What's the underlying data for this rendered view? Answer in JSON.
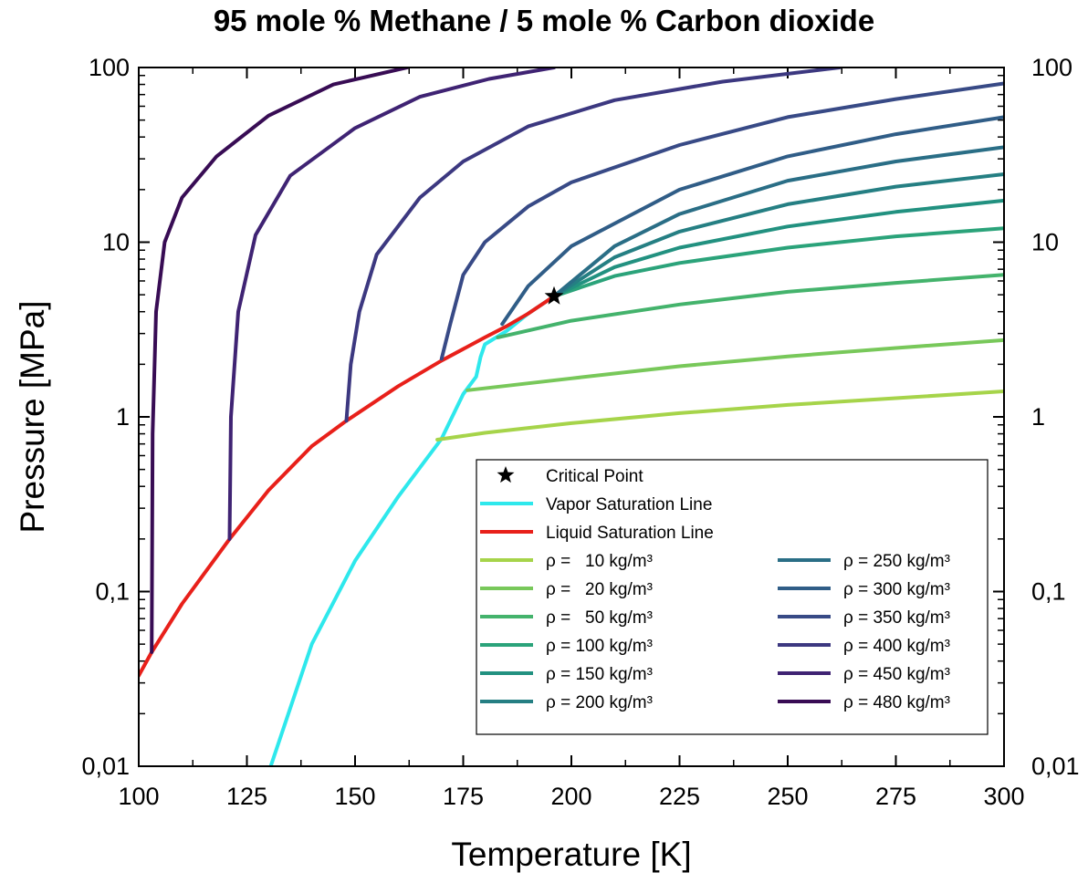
{
  "chart_data": {
    "type": "line",
    "title": "95 mole % Methane / 5 mole % Carbon dioxide",
    "xlabel": "Temperature [K]",
    "ylabel": "Pressure [MPa]",
    "xlim": [
      100,
      300
    ],
    "ylim": [
      0.01,
      100
    ],
    "y_scale": "log",
    "x_ticks": [
      100,
      125,
      150,
      175,
      200,
      225,
      250,
      275,
      300
    ],
    "y_ticks": [
      0.01,
      0.1,
      1,
      10,
      100
    ],
    "y_tick_labels": [
      "0,01",
      "0,1",
      "1",
      "10",
      "100"
    ],
    "right_axis_labels": true,
    "legend_position": "bottom-right",
    "critical_point": {
      "name": "Critical Point",
      "x": 196,
      "y": 4.9,
      "color": "#000000"
    },
    "series": [
      {
        "name": "Vapor Saturation Line",
        "color": "#2ee8ec",
        "points": [
          [
            130.5,
            0.01
          ],
          [
            140,
            0.05
          ],
          [
            150,
            0.15
          ],
          [
            160,
            0.35
          ],
          [
            170,
            0.75
          ],
          [
            175,
            1.35
          ],
          [
            178,
            1.7
          ],
          [
            179,
            2.2
          ],
          [
            180,
            2.6
          ],
          [
            185,
            3.1
          ],
          [
            190,
            3.9
          ],
          [
            196,
            4.9
          ]
        ]
      },
      {
        "name": "Liquid Saturation Line",
        "color": "#e8201a",
        "points": [
          [
            100,
            0.033
          ],
          [
            103,
            0.045
          ],
          [
            110,
            0.085
          ],
          [
            121,
            0.2
          ],
          [
            130,
            0.38
          ],
          [
            140,
            0.68
          ],
          [
            148,
            0.95
          ],
          [
            160,
            1.5
          ],
          [
            170,
            2.1
          ],
          [
            180,
            2.85
          ],
          [
            185,
            3.3
          ],
          [
            190,
            3.9
          ],
          [
            196,
            4.9
          ]
        ]
      },
      {
        "name": "ρ =   10 kg/m³",
        "color": "#a6d44a",
        "points": [
          [
            169,
            0.74
          ],
          [
            180,
            0.81
          ],
          [
            200,
            0.92
          ],
          [
            225,
            1.05
          ],
          [
            250,
            1.17
          ],
          [
            275,
            1.28
          ],
          [
            300,
            1.4
          ]
        ]
      },
      {
        "name": "ρ =   20 kg/m³",
        "color": "#78c85a",
        "points": [
          [
            176,
            1.42
          ],
          [
            200,
            1.66
          ],
          [
            225,
            1.95
          ],
          [
            250,
            2.22
          ],
          [
            275,
            2.48
          ],
          [
            300,
            2.75
          ]
        ]
      },
      {
        "name": "ρ =   50 kg/m³",
        "color": "#44b36c",
        "points": [
          [
            183,
            2.85
          ],
          [
            200,
            3.55
          ],
          [
            225,
            4.4
          ],
          [
            250,
            5.2
          ],
          [
            275,
            5.85
          ],
          [
            300,
            6.5
          ]
        ]
      },
      {
        "name": "ρ = 100 kg/m³",
        "color": "#2ba37a",
        "points": [
          [
            196,
            4.9
          ],
          [
            210,
            6.4
          ],
          [
            225,
            7.6
          ],
          [
            250,
            9.3
          ],
          [
            275,
            10.8
          ],
          [
            300,
            12
          ]
        ]
      },
      {
        "name": "ρ = 150 kg/m³",
        "color": "#229180",
        "points": [
          [
            196,
            4.9
          ],
          [
            210,
            7.2
          ],
          [
            225,
            9.3
          ],
          [
            250,
            12.3
          ],
          [
            275,
            14.9
          ],
          [
            300,
            17.3
          ]
        ]
      },
      {
        "name": "ρ = 200 kg/m³",
        "color": "#257f83",
        "points": [
          [
            196,
            4.9
          ],
          [
            210,
            8.2
          ],
          [
            225,
            11.5
          ],
          [
            250,
            16.5
          ],
          [
            275,
            20.8
          ],
          [
            300,
            24.5
          ]
        ]
      },
      {
        "name": "ρ = 250 kg/m³",
        "color": "#2a6e86",
        "points": [
          [
            196,
            4.9
          ],
          [
            210,
            9.5
          ],
          [
            225,
            14.5
          ],
          [
            250,
            22.5
          ],
          [
            275,
            29
          ],
          [
            300,
            35
          ]
        ]
      },
      {
        "name": "ρ = 300 kg/m³",
        "color": "#305d87",
        "points": [
          [
            184,
            3.4
          ],
          [
            190,
            5.6
          ],
          [
            200,
            9.5
          ],
          [
            225,
            20
          ],
          [
            250,
            31
          ],
          [
            275,
            41.5
          ],
          [
            300,
            52
          ]
        ]
      },
      {
        "name": "ρ = 350 kg/m³",
        "color": "#384a86",
        "points": [
          [
            170,
            2.15
          ],
          [
            172,
            3.4
          ],
          [
            175,
            6.5
          ],
          [
            180,
            10
          ],
          [
            190,
            16
          ],
          [
            200,
            22
          ],
          [
            225,
            36
          ],
          [
            250,
            52
          ],
          [
            275,
            66
          ],
          [
            300,
            81
          ]
        ]
      },
      {
        "name": "ρ = 400 kg/m³",
        "color": "#3c3880",
        "points": [
          [
            148,
            0.95
          ],
          [
            149,
            2
          ],
          [
            151,
            4
          ],
          [
            155,
            8.5
          ],
          [
            165,
            18
          ],
          [
            175,
            29
          ],
          [
            190,
            46
          ],
          [
            210,
            65
          ],
          [
            235,
            83
          ],
          [
            262,
            100
          ]
        ]
      },
      {
        "name": "ρ = 450 kg/m³",
        "color": "#3f2373",
        "points": [
          [
            121,
            0.2
          ],
          [
            121.3,
            1
          ],
          [
            123,
            4
          ],
          [
            127,
            11
          ],
          [
            135,
            24
          ],
          [
            150,
            45
          ],
          [
            165,
            68
          ],
          [
            181,
            86
          ],
          [
            196,
            100
          ]
        ]
      },
      {
        "name": "ρ = 480 kg/m³",
        "color": "#380c54",
        "points": [
          [
            103,
            0.045
          ],
          [
            103.2,
            0.8
          ],
          [
            104,
            4
          ],
          [
            106,
            10
          ],
          [
            110,
            18
          ],
          [
            118,
            31
          ],
          [
            130,
            53
          ],
          [
            145,
            80
          ],
          [
            162,
            100
          ]
        ]
      }
    ]
  }
}
